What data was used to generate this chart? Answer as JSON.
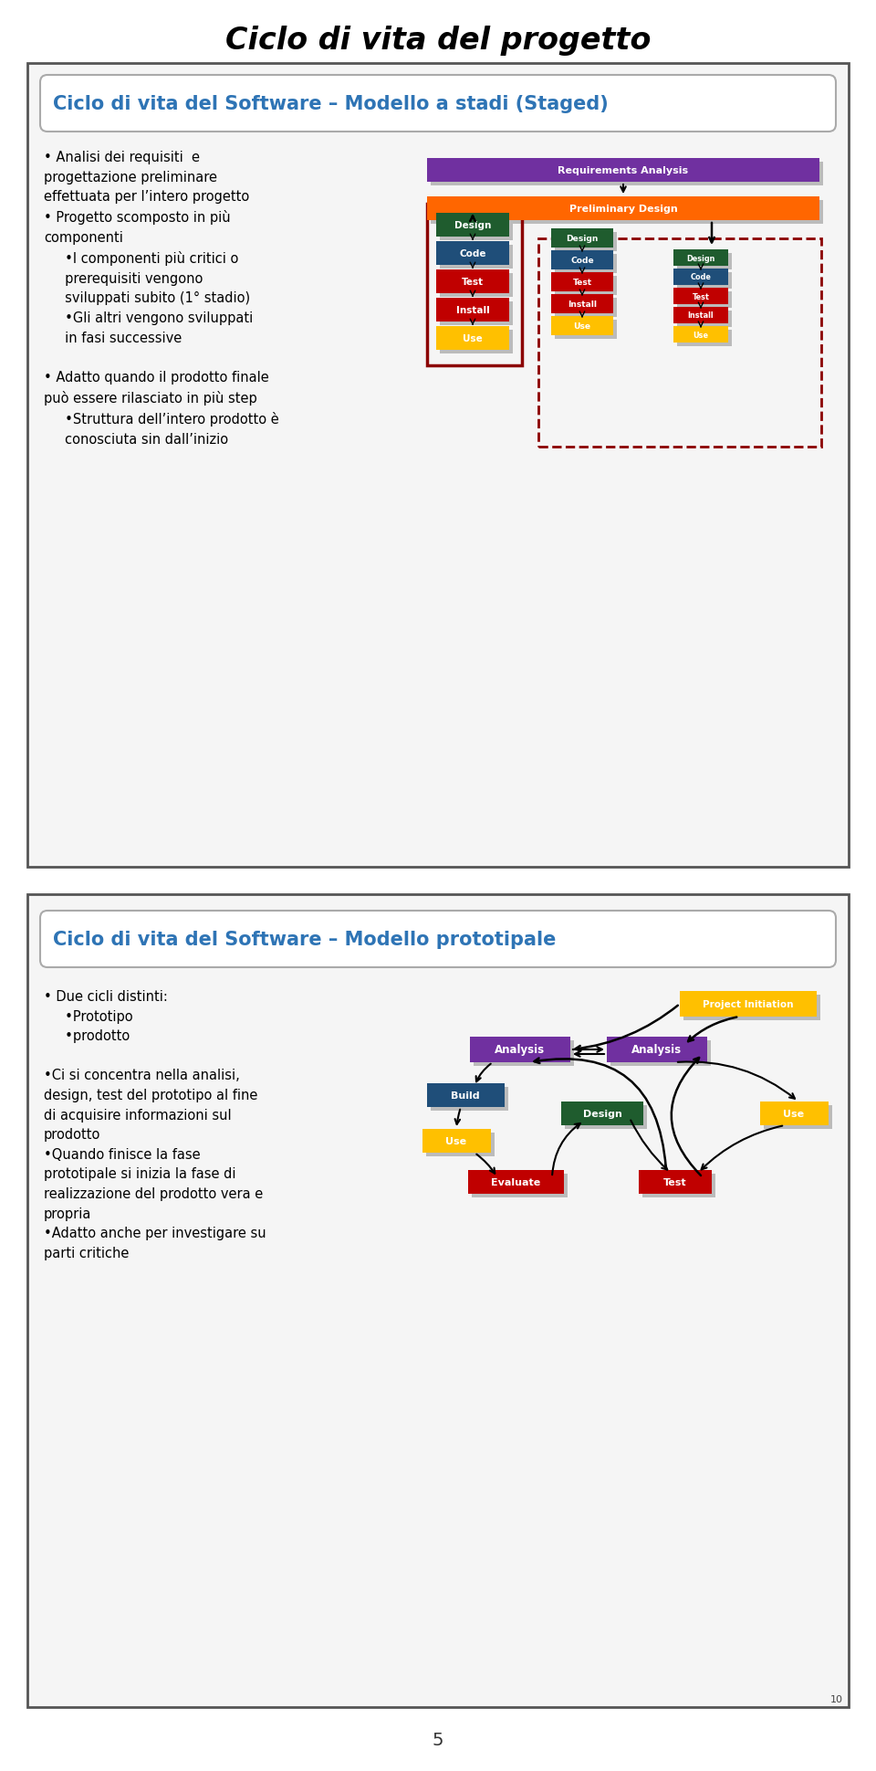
{
  "title": "Ciclo di vita del progetto",
  "bg_color": "#ffffff",
  "section1_title": "Ciclo di vita del Software – Modello a stadi (Staged)",
  "section2_title": "Ciclo di vita del Software – Modello prototipale",
  "section1_bullets": "• Analisi dei requisiti  e\nprogettazione preliminare\neffettuata per l’intero progetto\n• Progetto scomposto in più\ncomponenti\n     •I componenti più critici o\n     prerequisiti vengono\n     sviluppati subito (1° stadio)\n     •Gli altri vengono sviluppati\n     in fasi successive\n\n• Adatto quando il prodotto finale\npuò essere rilasciato in più step\n     •Struttura dell’intero prodotto è\n     conosciuta sin dall’inizio",
  "section2_bullets": "• Due cicli distinti:\n     •Prototipo\n     •prodotto\n\n•Ci si concentra nella analisi,\ndesign, test del prototipo al fine\ndi acquisire informazioni sul\nprodotto\n•Quando finisce la fase\nprototipale si inizia la fase di\nrealizzazione del prodotto vera e\npropria\n•Adatto anche per investigare su\nparti critiche",
  "staged_colors": {
    "requirements": "#7030a0",
    "preliminary": "#ff6600",
    "design": "#1f5c2e",
    "code": "#1f4e79",
    "test": "#c00000",
    "install": "#c00000",
    "use": "#ffc000"
  },
  "proto_colors": {
    "project_init": "#ffc000",
    "analysis_left": "#7030a0",
    "analysis_right": "#7030a0",
    "build": "#1f4e79",
    "use_left": "#ffc000",
    "use_right": "#ffc000",
    "evaluate": "#c00000",
    "design": "#1f5c2e",
    "test": "#c00000"
  },
  "page_number": "5",
  "slide_number": "10"
}
